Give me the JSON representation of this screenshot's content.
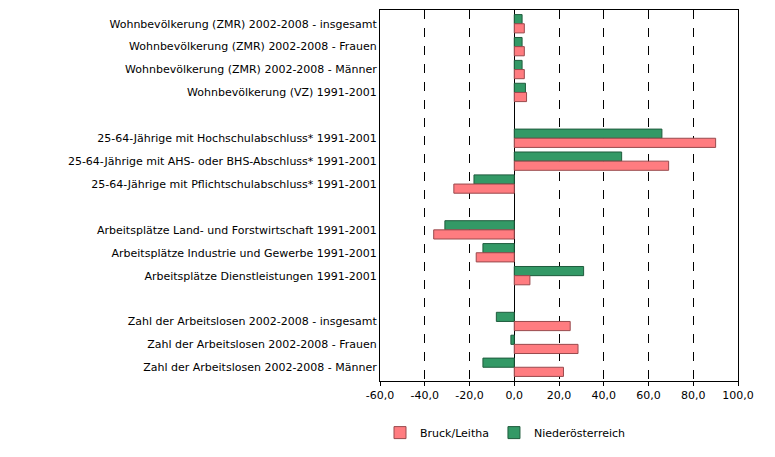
{
  "chart_data": {
    "type": "bar",
    "orientation": "horizontal",
    "categories": [
      "Wohnbevölkerung (ZMR) 2002-2008 - insgesamt",
      "Wohnbevölkerung (ZMR) 2002-2008 - Frauen",
      "Wohnbevölkerung (ZMR) 2002-2008 - Männer",
      "Wohnbevölkerung (VZ) 1991-2001",
      null,
      "25-64-Jährige mit Hochschulabschluss* 1991-2001",
      "25-64-Jährige mit AHS- oder BHS-Abschluss* 1991-2001",
      "25-64-Jährige mit Pflichtschulabschluss* 1991-2001",
      null,
      "Arbeitsplätze Land- und Forstwirtschaft 1991-2001",
      "Arbeitsplätze Industrie und Gewerbe 1991-2001",
      "Arbeitsplätze Dienstleistungen 1991-2001",
      null,
      "Zahl der Arbeitslosen 2002-2008 - insgesamt",
      "Zahl der Arbeitslosen 2002-2008 - Frauen",
      "Zahl der Arbeitslosen 2002-2008 - Männer"
    ],
    "series": [
      {
        "name": "Niederösterreich",
        "color": "#339966",
        "values": [
          3.5,
          3.5,
          3.5,
          5.0,
          null,
          66,
          48,
          -18,
          null,
          -31,
          -14,
          31,
          null,
          -8,
          -1.5,
          -14
        ]
      },
      {
        "name": "Bruck/Leitha",
        "color": "#ff7c80",
        "values": [
          4.5,
          4.5,
          4.5,
          5.5,
          null,
          90,
          69,
          -27,
          null,
          -36,
          -17,
          7,
          null,
          25,
          28.5,
          22
        ]
      }
    ],
    "xlim": [
      -60,
      100
    ],
    "xticks": [
      {
        "value": -60,
        "label": "-60,0"
      },
      {
        "value": -40,
        "label": "-40,0"
      },
      {
        "value": -20,
        "label": "-20,0"
      },
      {
        "value": 0,
        "label": "0,0"
      },
      {
        "value": 20,
        "label": "20,0"
      },
      {
        "value": 40,
        "label": "40,0"
      },
      {
        "value": 60,
        "label": "60,0"
      },
      {
        "value": 80,
        "label": "80,0"
      },
      {
        "value": 100,
        "label": "100,0"
      }
    ],
    "grid": true,
    "legend": "bottom"
  }
}
